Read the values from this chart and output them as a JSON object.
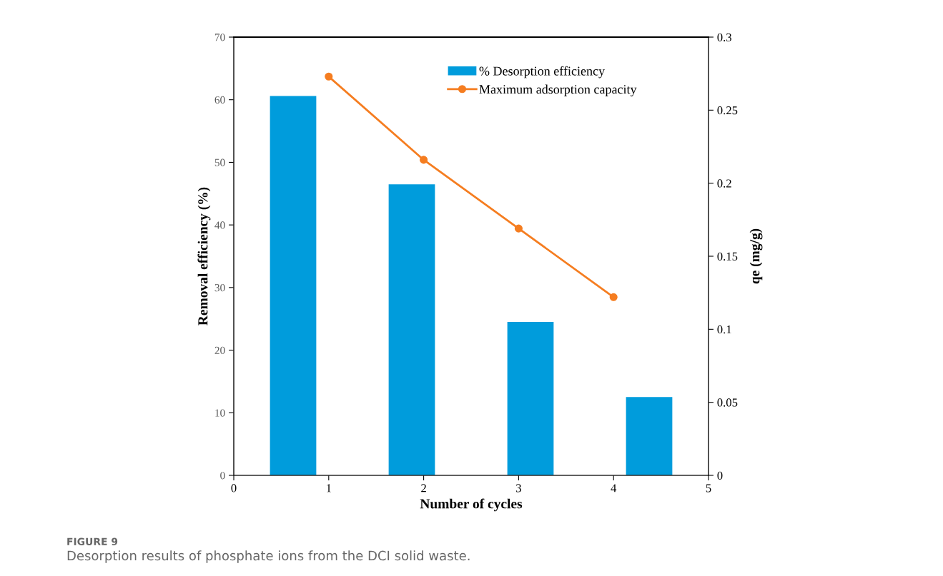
{
  "chart_data": {
    "type": "bar",
    "xlabel": "Number of cycles",
    "ylabel": "Removal efficiency (%)",
    "y2label": "qe (mg/g)",
    "xlim": [
      0,
      5
    ],
    "xticks": [
      0,
      1,
      2,
      3,
      4,
      5
    ],
    "ylim": [
      0,
      70
    ],
    "yticks": [
      0,
      10,
      20,
      30,
      40,
      50,
      60,
      70
    ],
    "y2lim": [
      0,
      0.3
    ],
    "y2ticks": [
      0,
      0.05,
      0.1,
      0.15,
      0.2,
      0.25,
      0.3
    ],
    "series": [
      {
        "name": "% Desorption efficiency",
        "color": "#009cdc",
        "x": [
          0.625,
          1.875,
          3.125,
          4.375
        ],
        "values": [
          60.6,
          46.5,
          24.5,
          12.5
        ]
      },
      {
        "name": "Maximum adsorption capacity",
        "type": "line",
        "axis": "y2",
        "color": "#f57d20",
        "marker": "circle",
        "x": [
          1,
          2,
          3,
          4
        ],
        "values": [
          0.273,
          0.216,
          0.169,
          0.122
        ]
      }
    ],
    "legend": "top",
    "grid": false,
    "annotations": [
      "FIGURE 9",
      "Desorption results of phosphate ions from the DCI solid waste."
    ]
  }
}
